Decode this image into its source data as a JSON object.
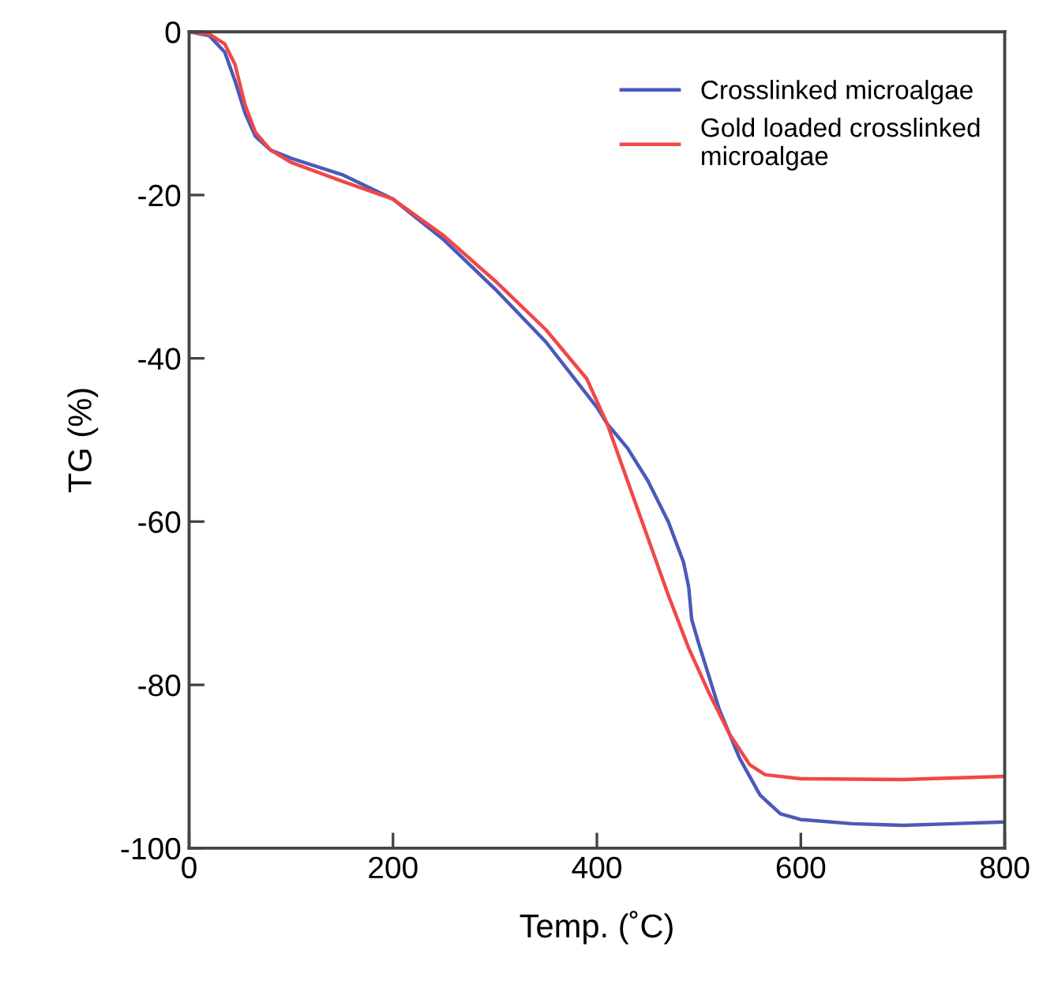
{
  "chart_data": {
    "type": "line",
    "xlabel": "Temp. (˚C)",
    "ylabel": "TG (%)",
    "xlim": [
      0,
      800
    ],
    "xticks": [
      0,
      200,
      400,
      600,
      800
    ],
    "ylim": [
      -100,
      0
    ],
    "yticks": [
      -100,
      -80,
      -60,
      -40,
      -20,
      0
    ],
    "grid": false,
    "legend": "top right",
    "marker": "none",
    "line_style": "solid",
    "series": [
      {
        "name": "Crosslinked microalgae",
        "color": "#4a5ab8",
        "x": [
          0,
          20,
          35,
          45,
          55,
          65,
          80,
          100,
          150,
          200,
          250,
          300,
          350,
          400,
          410,
          430,
          450,
          470,
          485,
          490,
          493,
          500,
          520,
          540,
          560,
          580,
          600,
          650,
          700,
          750,
          800
        ],
        "values": [
          0,
          -0.5,
          -2.5,
          -6,
          -10,
          -12.8,
          -14.5,
          -15.5,
          -17.5,
          -20.5,
          -25.5,
          -31.5,
          -38,
          -46,
          -48,
          -51,
          -55,
          -60,
          -65,
          -68,
          -72,
          -75,
          -83,
          -89,
          -93.5,
          -95.8,
          -96.5,
          -97,
          -97.2,
          -97,
          -96.8
        ]
      },
      {
        "name": "Gold loaded crosslinked\nmicroalgae",
        "color": "#f04848",
        "x": [
          0,
          20,
          35,
          45,
          55,
          65,
          80,
          100,
          150,
          200,
          250,
          300,
          350,
          390,
          410,
          430,
          450,
          470,
          490,
          510,
          530,
          550,
          565,
          600,
          700,
          800
        ],
        "values": [
          0,
          -0.3,
          -1.5,
          -4,
          -9,
          -12.3,
          -14.5,
          -16,
          -18.3,
          -20.5,
          -25,
          -30.5,
          -36.5,
          -42.5,
          -48,
          -55,
          -62,
          -69,
          -75.5,
          -81,
          -86,
          -89.8,
          -91,
          -91.5,
          -91.6,
          -91.2
        ]
      }
    ]
  }
}
